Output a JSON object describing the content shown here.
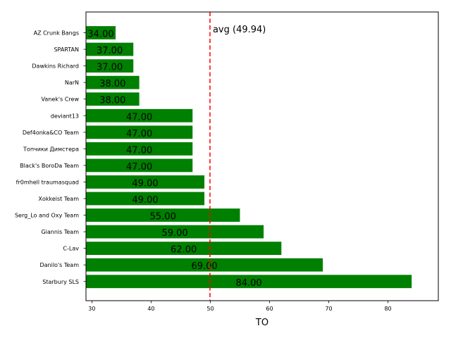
{
  "chart_data": {
    "type": "bar",
    "orientation": "horizontal",
    "categories": [
      "AZ Crunk Bangs",
      "SPARTAN",
      "Dawkins Richard",
      "NarN",
      "Vanek's Crew",
      "deviant13",
      "Def4onka&CO Team",
      "Топчики Димстера",
      "Black's BoroDa Team",
      "fr0mhell traumasquad",
      "Xokkeist Team",
      "Serg_Lo and Oxy Team",
      "Giannis Team",
      "C-Lav",
      "Danilo's Team",
      "Starbury SLS"
    ],
    "values": [
      34,
      37,
      37,
      38,
      38,
      47,
      47,
      47,
      47,
      49,
      49,
      55,
      59,
      62,
      69,
      84
    ],
    "value_labels": [
      "34.00",
      "37.00",
      "37.00",
      "38.00",
      "38.00",
      "47.00",
      "47.00",
      "47.00",
      "47.00",
      "49.00",
      "49.00",
      "55.00",
      "59.00",
      "62.00",
      "69.00",
      "84.00"
    ],
    "xlabel": "TO",
    "ylabel": "",
    "xlim": [
      29,
      88.5
    ],
    "xticks": [
      "30",
      "40",
      "50",
      "60",
      "70",
      "80"
    ],
    "bar_color": "#008000",
    "average": {
      "value": 49.94,
      "label": "avg (49.94)",
      "color": "#ff0000",
      "style": "dashed"
    },
    "grid": false,
    "legend": "none"
  }
}
